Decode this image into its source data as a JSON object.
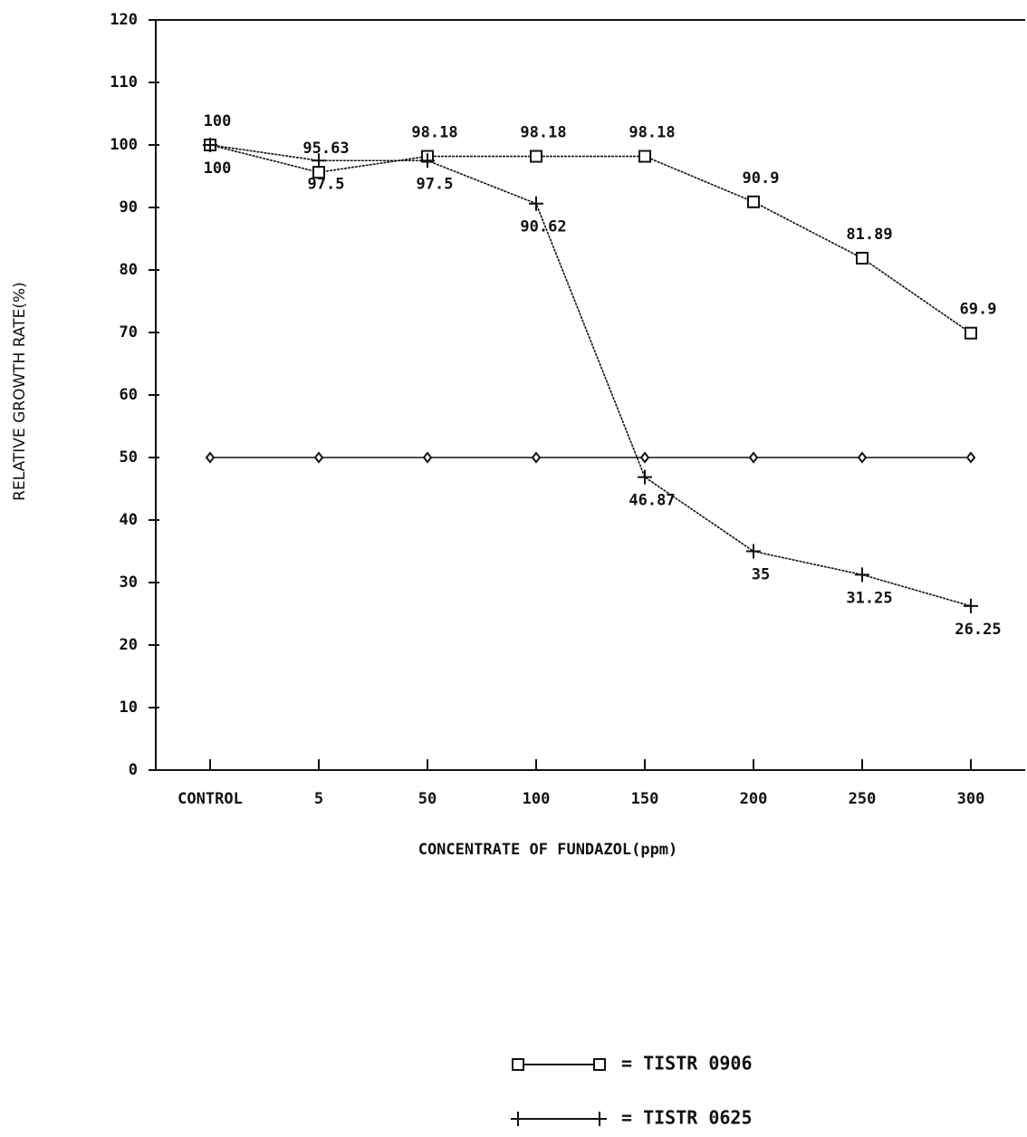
{
  "chart_data": {
    "type": "line",
    "x_label": "CONCENTRATE OF FUNDAZOL(ppm)",
    "y_label": "RELATIVE   GROWTH RATE(%)",
    "categories": [
      "CONTROL",
      "5",
      "50",
      "100",
      "150",
      "200",
      "250",
      "300"
    ],
    "series": [
      {
        "name": "= TISTR 0906",
        "color": "#111111",
        "marker": "square",
        "values": [
          100,
          95.63,
          98.18,
          98.18,
          98.18,
          90.9,
          81.89,
          69.9
        ]
      },
      {
        "name": "= TISTR 0625",
        "color": "#111111",
        "marker": "plus",
        "values": [
          100,
          97.5,
          97.5,
          90.62,
          46.87,
          35,
          31.25,
          26.25
        ]
      },
      {
        "color": "#111111",
        "marker": "diamond",
        "values": [
          50,
          50,
          50,
          50,
          50,
          50,
          50,
          50
        ]
      }
    ],
    "ylim": [
      0,
      120
    ],
    "yticks": [
      0,
      10,
      20,
      30,
      40,
      50,
      60,
      70,
      80,
      90,
      100,
      110,
      120
    ],
    "grid": false,
    "data_labels": [
      true,
      true,
      false
    ]
  }
}
